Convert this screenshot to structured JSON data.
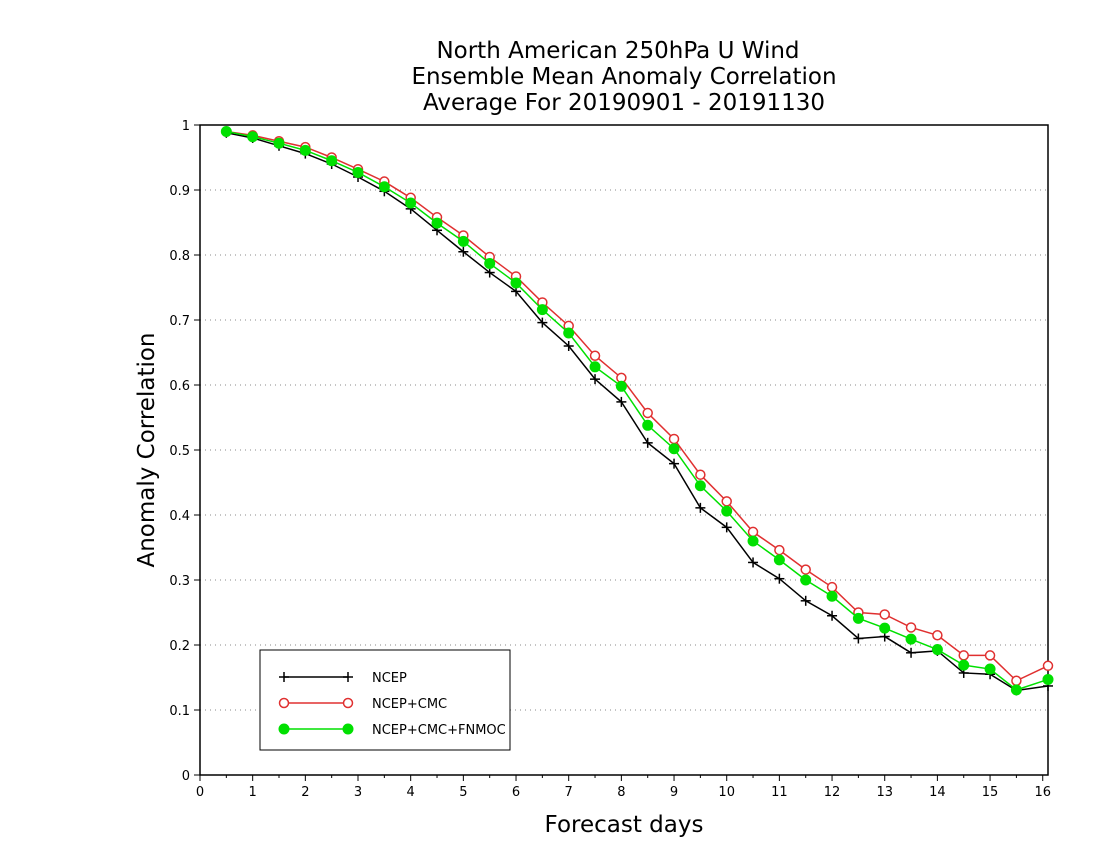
{
  "chart_data": {
    "type": "line",
    "title": [
      "North American 250hPa U Wind",
      "Ensemble Mean Anomaly Correlation",
      "Average For 20190901 - 20191130"
    ],
    "xlabel": "Forecast days",
    "ylabel": "Anomaly Correlation",
    "xlim": [
      0,
      16.1
    ],
    "ylim": [
      0,
      1
    ],
    "xticks": [
      "0",
      "1",
      "2",
      "3",
      "4",
      "5",
      "6",
      "7",
      "8",
      "9",
      "10",
      "11",
      "12",
      "13",
      "14",
      "15",
      "16"
    ],
    "yticks": [
      "0",
      "0.1",
      "0.2",
      "0.3",
      "0.4",
      "0.5",
      "0.6",
      "0.7",
      "0.8",
      "0.9",
      "1"
    ],
    "grid": "horizontal-dotted",
    "legend_position": "bottom-left",
    "x": [
      0.5,
      1,
      1.5,
      2,
      2.5,
      3,
      3.5,
      4,
      4.5,
      5,
      5.5,
      6,
      6.5,
      7,
      7.5,
      8,
      8.5,
      9,
      9.5,
      10,
      10.5,
      11,
      11.5,
      12,
      12.5,
      13,
      13.5,
      14,
      14.5,
      15,
      15.5,
      16.1
    ],
    "series": [
      {
        "name": "NCEP",
        "color": "#000000",
        "marker": "plus",
        "values": [
          0.988,
          0.98,
          0.968,
          0.956,
          0.94,
          0.92,
          0.898,
          0.871,
          0.838,
          0.805,
          0.773,
          0.744,
          0.696,
          0.66,
          0.609,
          0.574,
          0.511,
          0.479,
          0.411,
          0.381,
          0.327,
          0.302,
          0.268,
          0.245,
          0.21,
          0.213,
          0.188,
          0.191,
          0.157,
          0.155,
          0.13,
          0.137
        ]
      },
      {
        "name": "NCEP+CMC",
        "color": "#e03030",
        "marker": "open-circle",
        "values": [
          0.99,
          0.984,
          0.975,
          0.966,
          0.95,
          0.932,
          0.913,
          0.888,
          0.858,
          0.83,
          0.797,
          0.767,
          0.727,
          0.691,
          0.645,
          0.611,
          0.557,
          0.517,
          0.462,
          0.421,
          0.374,
          0.346,
          0.316,
          0.289,
          0.25,
          0.247,
          0.227,
          0.215,
          0.184,
          0.184,
          0.145,
          0.168
        ]
      },
      {
        "name": "NCEP+CMC+FNMOC",
        "color": "#00e000",
        "marker": "filled-circle",
        "values": [
          0.99,
          0.982,
          0.972,
          0.961,
          0.945,
          0.927,
          0.905,
          0.88,
          0.849,
          0.821,
          0.787,
          0.757,
          0.716,
          0.68,
          0.628,
          0.598,
          0.538,
          0.502,
          0.445,
          0.406,
          0.36,
          0.331,
          0.3,
          0.275,
          0.241,
          0.226,
          0.209,
          0.193,
          0.169,
          0.163,
          0.131,
          0.147
        ]
      }
    ]
  }
}
